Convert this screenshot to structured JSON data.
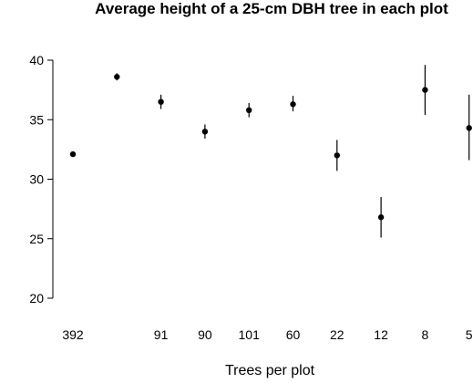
{
  "chart_data": {
    "type": "scatter",
    "title": "Average height of a 25-cm DBH tree in each plot",
    "xlabel": "Trees per plot",
    "ylabel": "",
    "ylim": [
      20,
      40
    ],
    "yticks": [
      20,
      25,
      30,
      35,
      40
    ],
    "grid": false,
    "legend": "none",
    "categories": [
      "392",
      "",
      "91",
      "90",
      "101",
      "60",
      "22",
      "12",
      "8",
      "5"
    ],
    "values": [
      32.1,
      38.6,
      36.5,
      34.0,
      35.8,
      36.3,
      32.0,
      26.8,
      37.5,
      34.3
    ],
    "error_low": [
      32.1,
      38.3,
      35.9,
      33.4,
      35.2,
      35.7,
      30.7,
      25.1,
      35.4,
      31.6
    ],
    "error_high": [
      32.2,
      38.9,
      37.1,
      34.6,
      36.4,
      37.0,
      33.3,
      28.5,
      39.6,
      37.1
    ],
    "marker_color": "#000000"
  }
}
